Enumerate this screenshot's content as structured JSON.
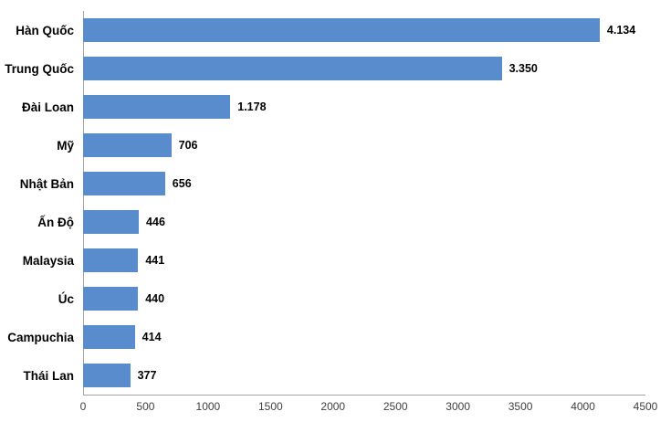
{
  "chart_data": {
    "type": "bar",
    "orientation": "horizontal",
    "title": "",
    "xlabel": "",
    "ylabel": "",
    "categories": [
      "Hàn Quốc",
      "Trung Quốc",
      "Đài Loan",
      "Mỹ",
      "Nhật Bản",
      "Ấn Độ",
      "Malaysia",
      "Úc",
      "Campuchia",
      "Thái Lan"
    ],
    "values": [
      4134,
      3350,
      1178,
      706,
      656,
      446,
      441,
      440,
      414,
      377
    ],
    "value_labels": [
      "4.134",
      "3.350",
      "1.178",
      "706",
      "656",
      "446",
      "441",
      "440",
      "414",
      "377"
    ],
    "xlim": [
      0,
      4500
    ],
    "x_ticks": [
      0,
      500,
      1000,
      1500,
      2000,
      2500,
      3000,
      3500,
      4000,
      4500
    ],
    "x_tick_labels": [
      "0",
      "500",
      "1000",
      "1500",
      "2000",
      "2500",
      "3000",
      "3500",
      "4000",
      "4500"
    ],
    "grid": false,
    "legend": false,
    "bar_color": "#588CCD",
    "axis_line_color": "#a3a3a3",
    "label_color": "#000000",
    "tick_label_color": "#3f3f3f"
  }
}
